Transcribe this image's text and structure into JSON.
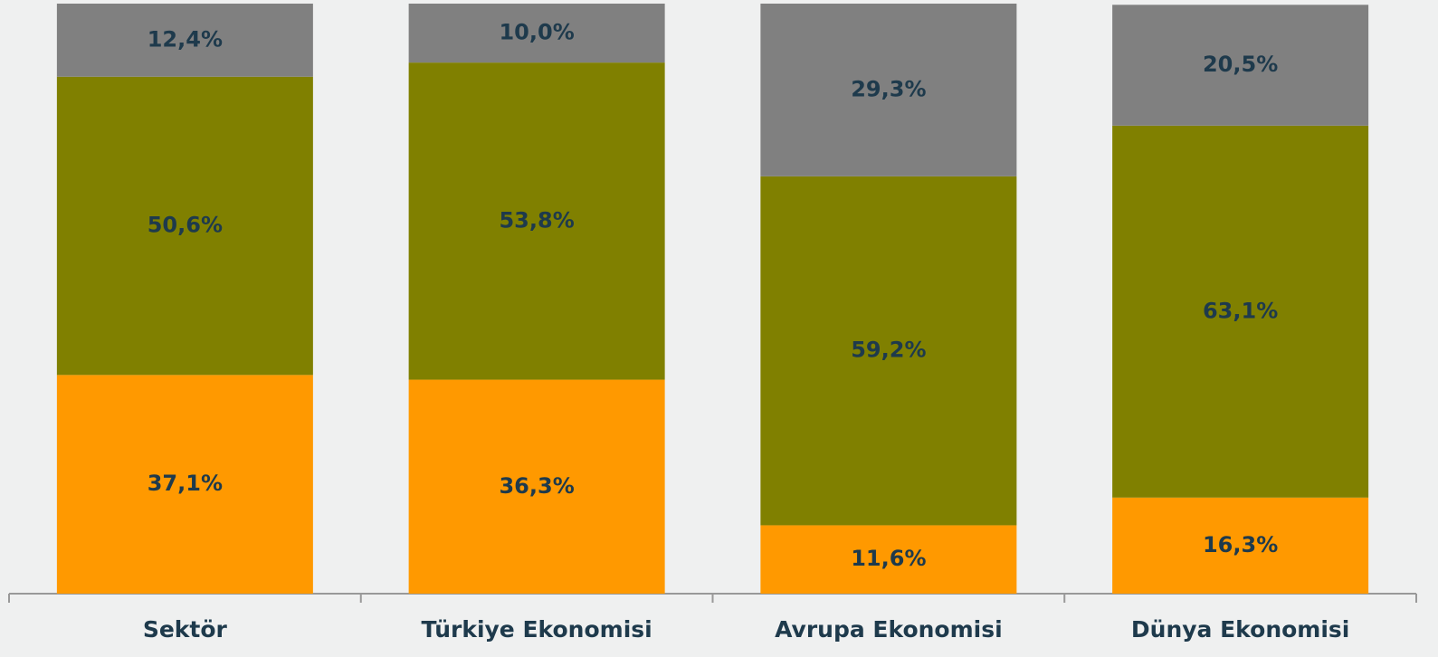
{
  "chart_data": {
    "type": "stacked_bar",
    "categories": [
      "Sektör",
      "Türkiye Ekonomisi",
      "Avrupa Ekonomisi",
      "Dünya Ekonomisi"
    ],
    "series": [
      {
        "color": "#ff9900",
        "values": [
          37.1,
          36.3,
          11.6,
          16.3
        ],
        "value_labels": [
          "37,1%",
          "36,3%",
          "11,6%",
          "16,3%"
        ]
      },
      {
        "color": "#808000",
        "values": [
          50.6,
          53.8,
          59.2,
          63.1
        ],
        "value_labels": [
          "50,6%",
          "53,8%",
          "59,2%",
          "63,1%"
        ]
      },
      {
        "color": "#808080",
        "values": [
          12.4,
          10.0,
          29.3,
          20.5
        ],
        "value_labels": [
          "12,4%",
          "10,0%",
          "29,3%",
          "20,5%"
        ]
      }
    ]
  }
}
